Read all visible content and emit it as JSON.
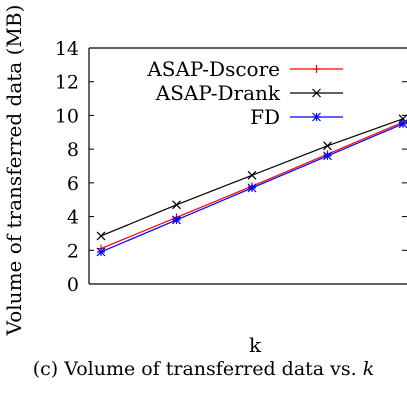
{
  "chart_data": {
    "type": "line",
    "title": "",
    "xlabel": "k",
    "ylabel": "Volume of transferred data (MB)",
    "x": [
      1,
      2,
      3,
      4,
      5
    ],
    "xlim": [
      1,
      5
    ],
    "ylim": [
      0,
      14
    ],
    "yticks": [
      "0",
      "2",
      "4",
      "6",
      "8",
      "10",
      "12",
      "14"
    ],
    "grid": false,
    "legend_position": "top-left",
    "series": [
      {
        "name": "ASAP-Dscore",
        "color": "#ff0000",
        "marker": "plus",
        "values": [
          2.1,
          3.95,
          5.8,
          7.7,
          9.6
        ]
      },
      {
        "name": "ASAP-Drank",
        "color": "#000000",
        "marker": "x",
        "values": [
          2.85,
          4.7,
          6.45,
          8.2,
          9.8
        ]
      },
      {
        "name": "FD",
        "color": "#0000ff",
        "marker": "asterisk",
        "values": [
          1.9,
          3.8,
          5.7,
          7.6,
          9.5
        ]
      }
    ]
  },
  "caption": {
    "prefix": "(c) Volume of transferred data vs. ",
    "variable": "k"
  }
}
